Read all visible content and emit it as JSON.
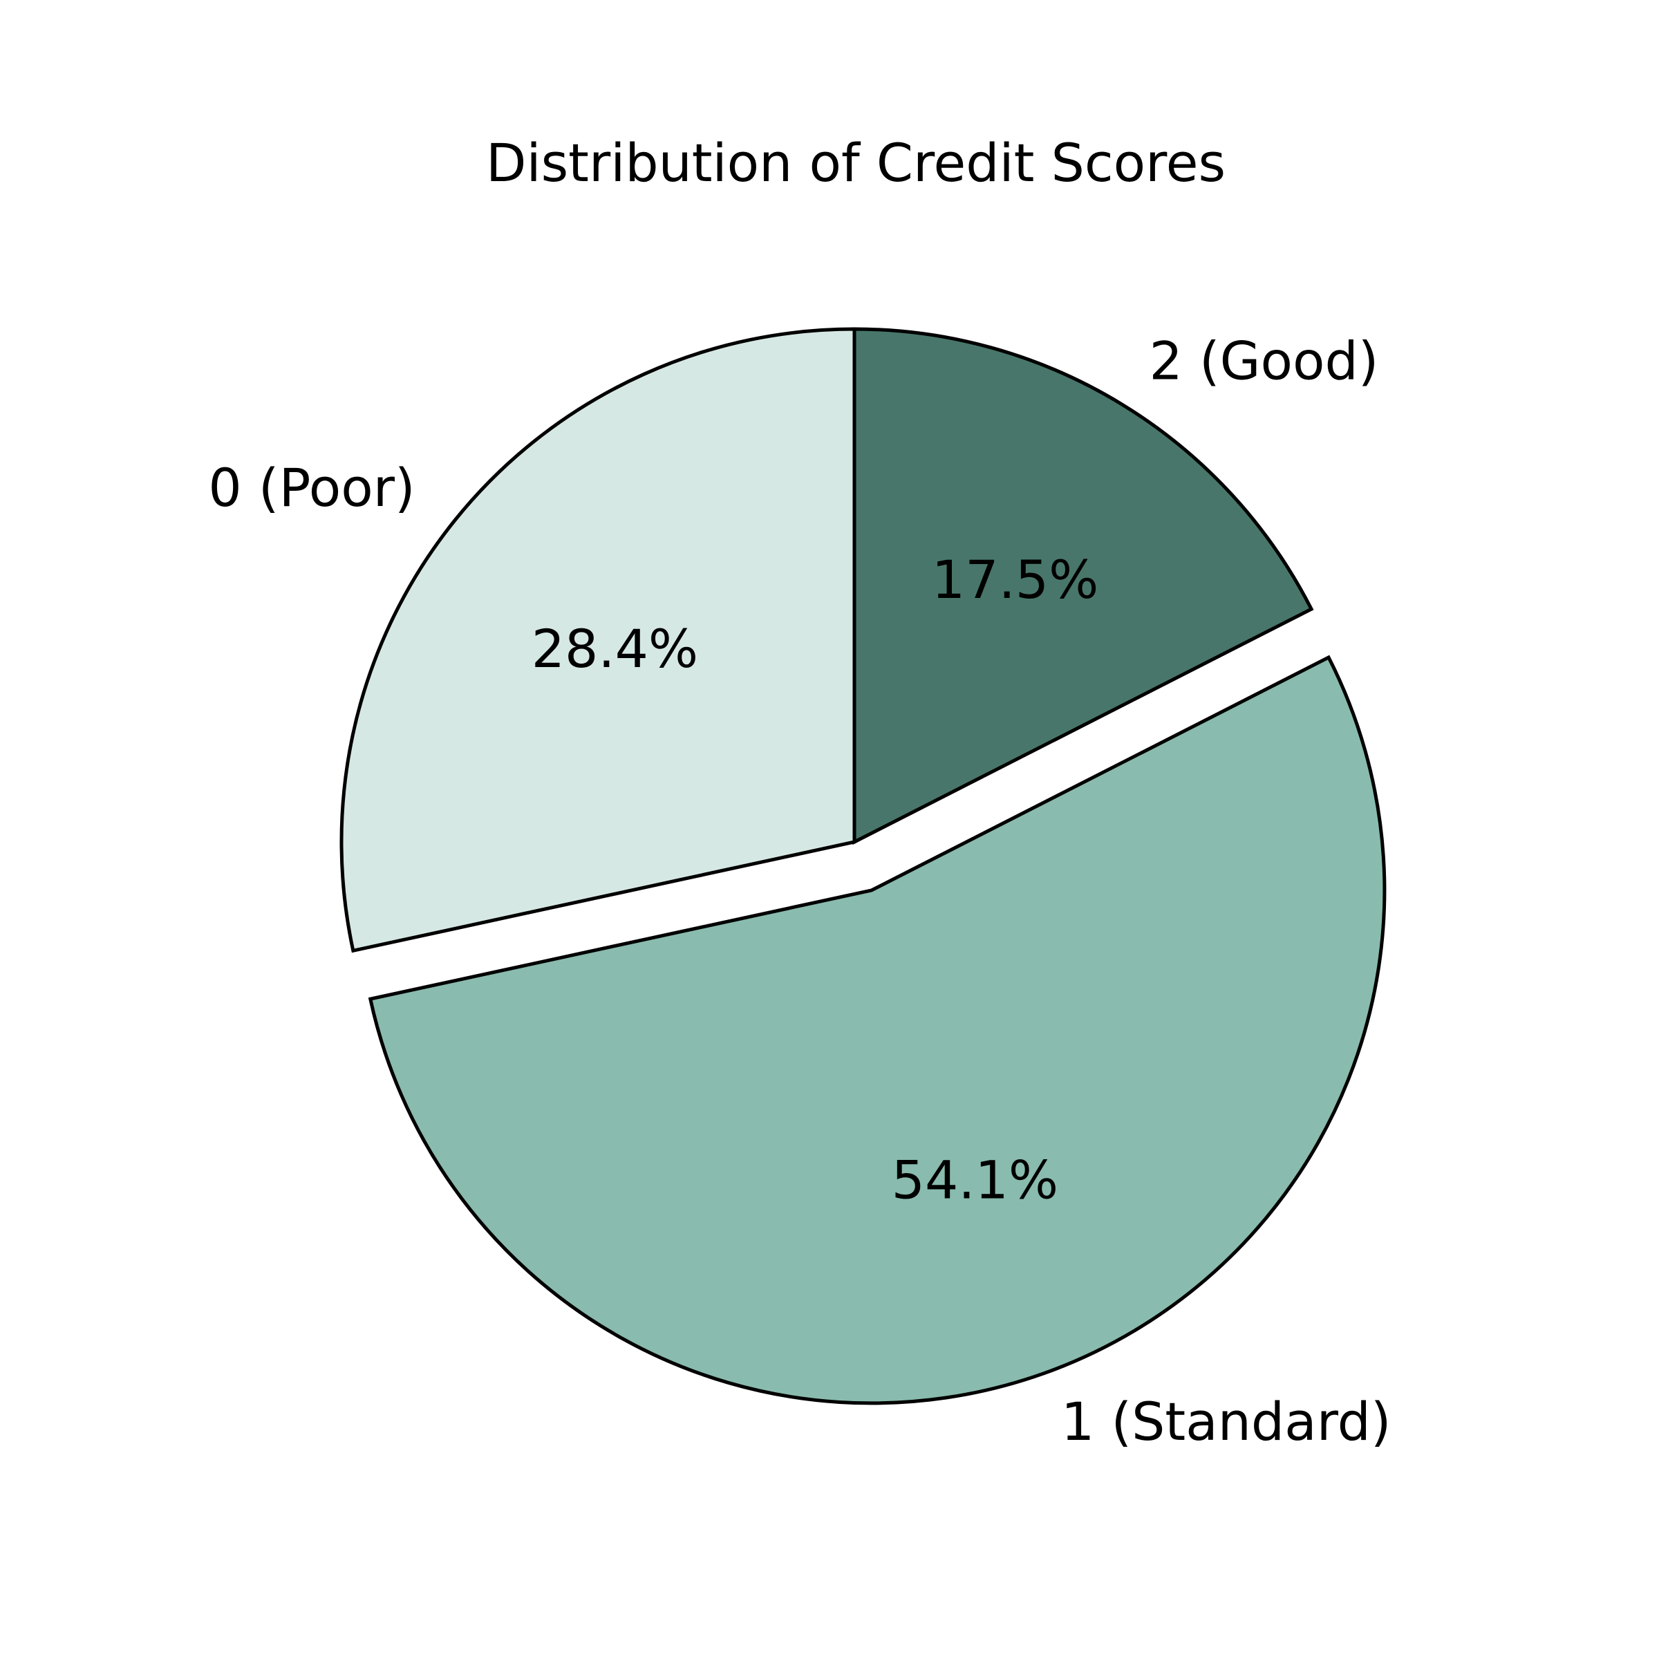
{
  "chart_data": {
    "type": "pie",
    "title": "Distribution of Credit Scores",
    "slices": [
      {
        "label": "0 (Poor)",
        "value": 28.4,
        "pct_label": "28.4%",
        "color": "#d6e8e4",
        "exploded": false
      },
      {
        "label": "1 (Standard)",
        "value": 54.1,
        "pct_label": "54.1%",
        "color": "#89bbae",
        "exploded": true
      },
      {
        "label": "2 (Good)",
        "value": 17.5,
        "pct_label": "17.5%",
        "color": "#48766b",
        "exploded": false
      }
    ],
    "start_angle": 90,
    "direction": "counterclockwise",
    "edge_color": "#000000"
  }
}
